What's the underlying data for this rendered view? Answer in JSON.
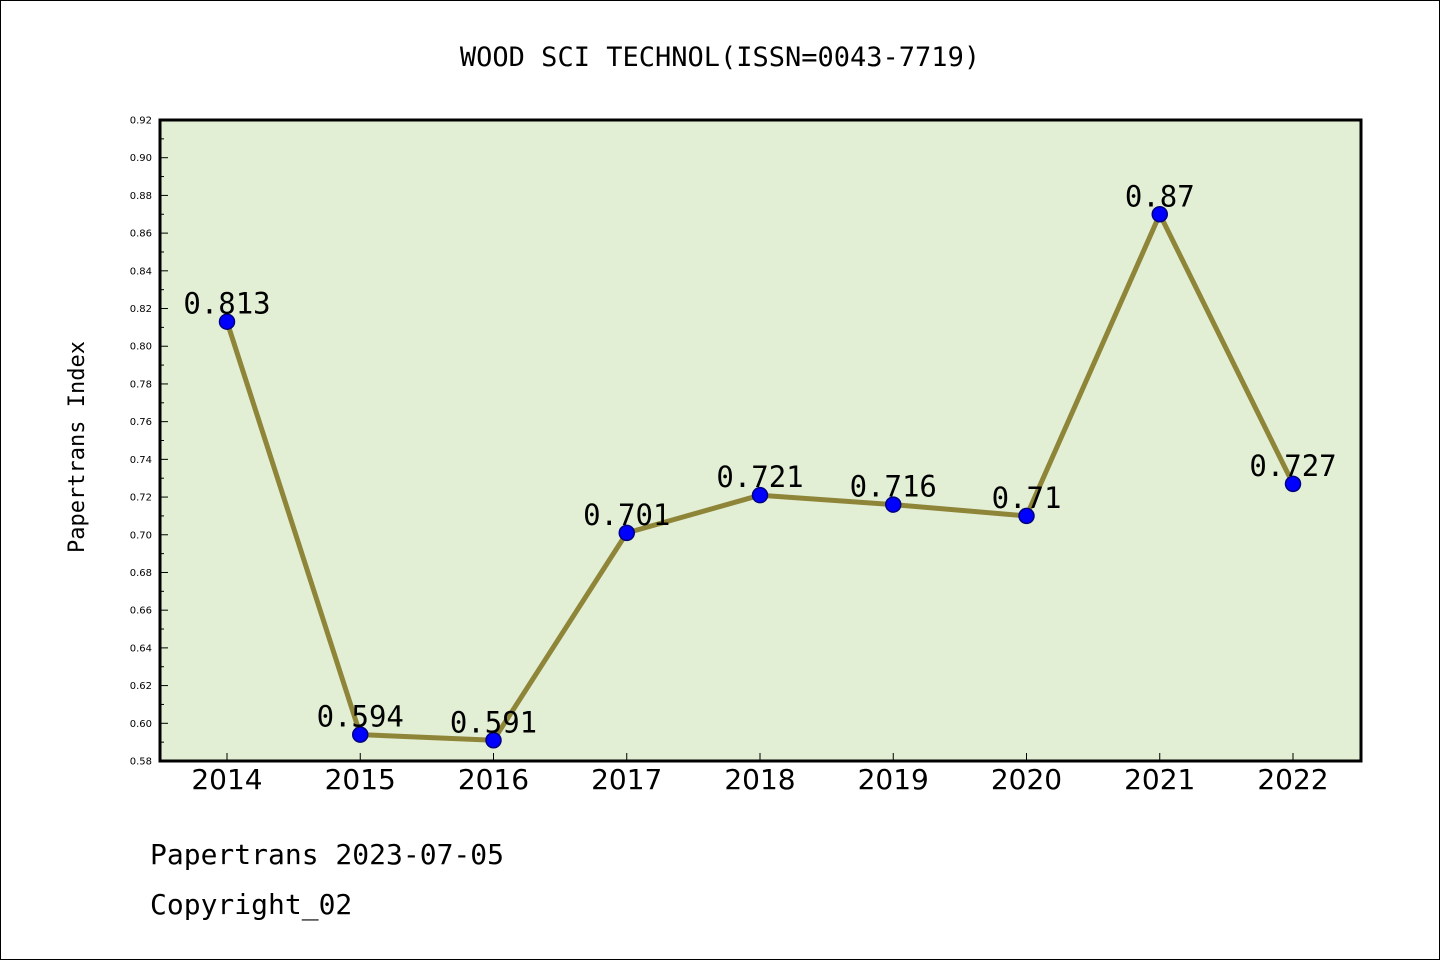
{
  "chart_data": {
    "type": "line",
    "title": "WOOD SCI TECHNOL(ISSN=0043-7719)",
    "ylabel": "Papertrans Index",
    "xlabel": "",
    "categories": [
      "2014",
      "2015",
      "2016",
      "2017",
      "2018",
      "2019",
      "2020",
      "2021",
      "2022"
    ],
    "values": [
      0.813,
      0.594,
      0.591,
      0.701,
      0.721,
      0.716,
      0.71,
      0.87,
      0.727
    ],
    "data_labels": [
      "0.813",
      "0.594",
      "0.591",
      "0.701",
      "0.721",
      "0.716",
      "0.71",
      "0.87",
      "0.727"
    ],
    "ylim": [
      0.58,
      0.92
    ],
    "yticks": [
      "0.58",
      "0.60",
      "0.62",
      "0.64",
      "0.66",
      "0.68",
      "0.70",
      "0.72",
      "0.74",
      "0.76",
      "0.78",
      "0.80",
      "0.82",
      "0.84",
      "0.86",
      "0.88",
      "0.90",
      "0.92"
    ],
    "grid": false,
    "colors": {
      "plot_background": "#e2efd5",
      "line": "#8e8538",
      "marker_fill": "#0000ff",
      "marker_edge": "#000080"
    }
  },
  "footer": {
    "source": "Papertrans 2023-07-05",
    "copyright": "Copyright_02"
  }
}
